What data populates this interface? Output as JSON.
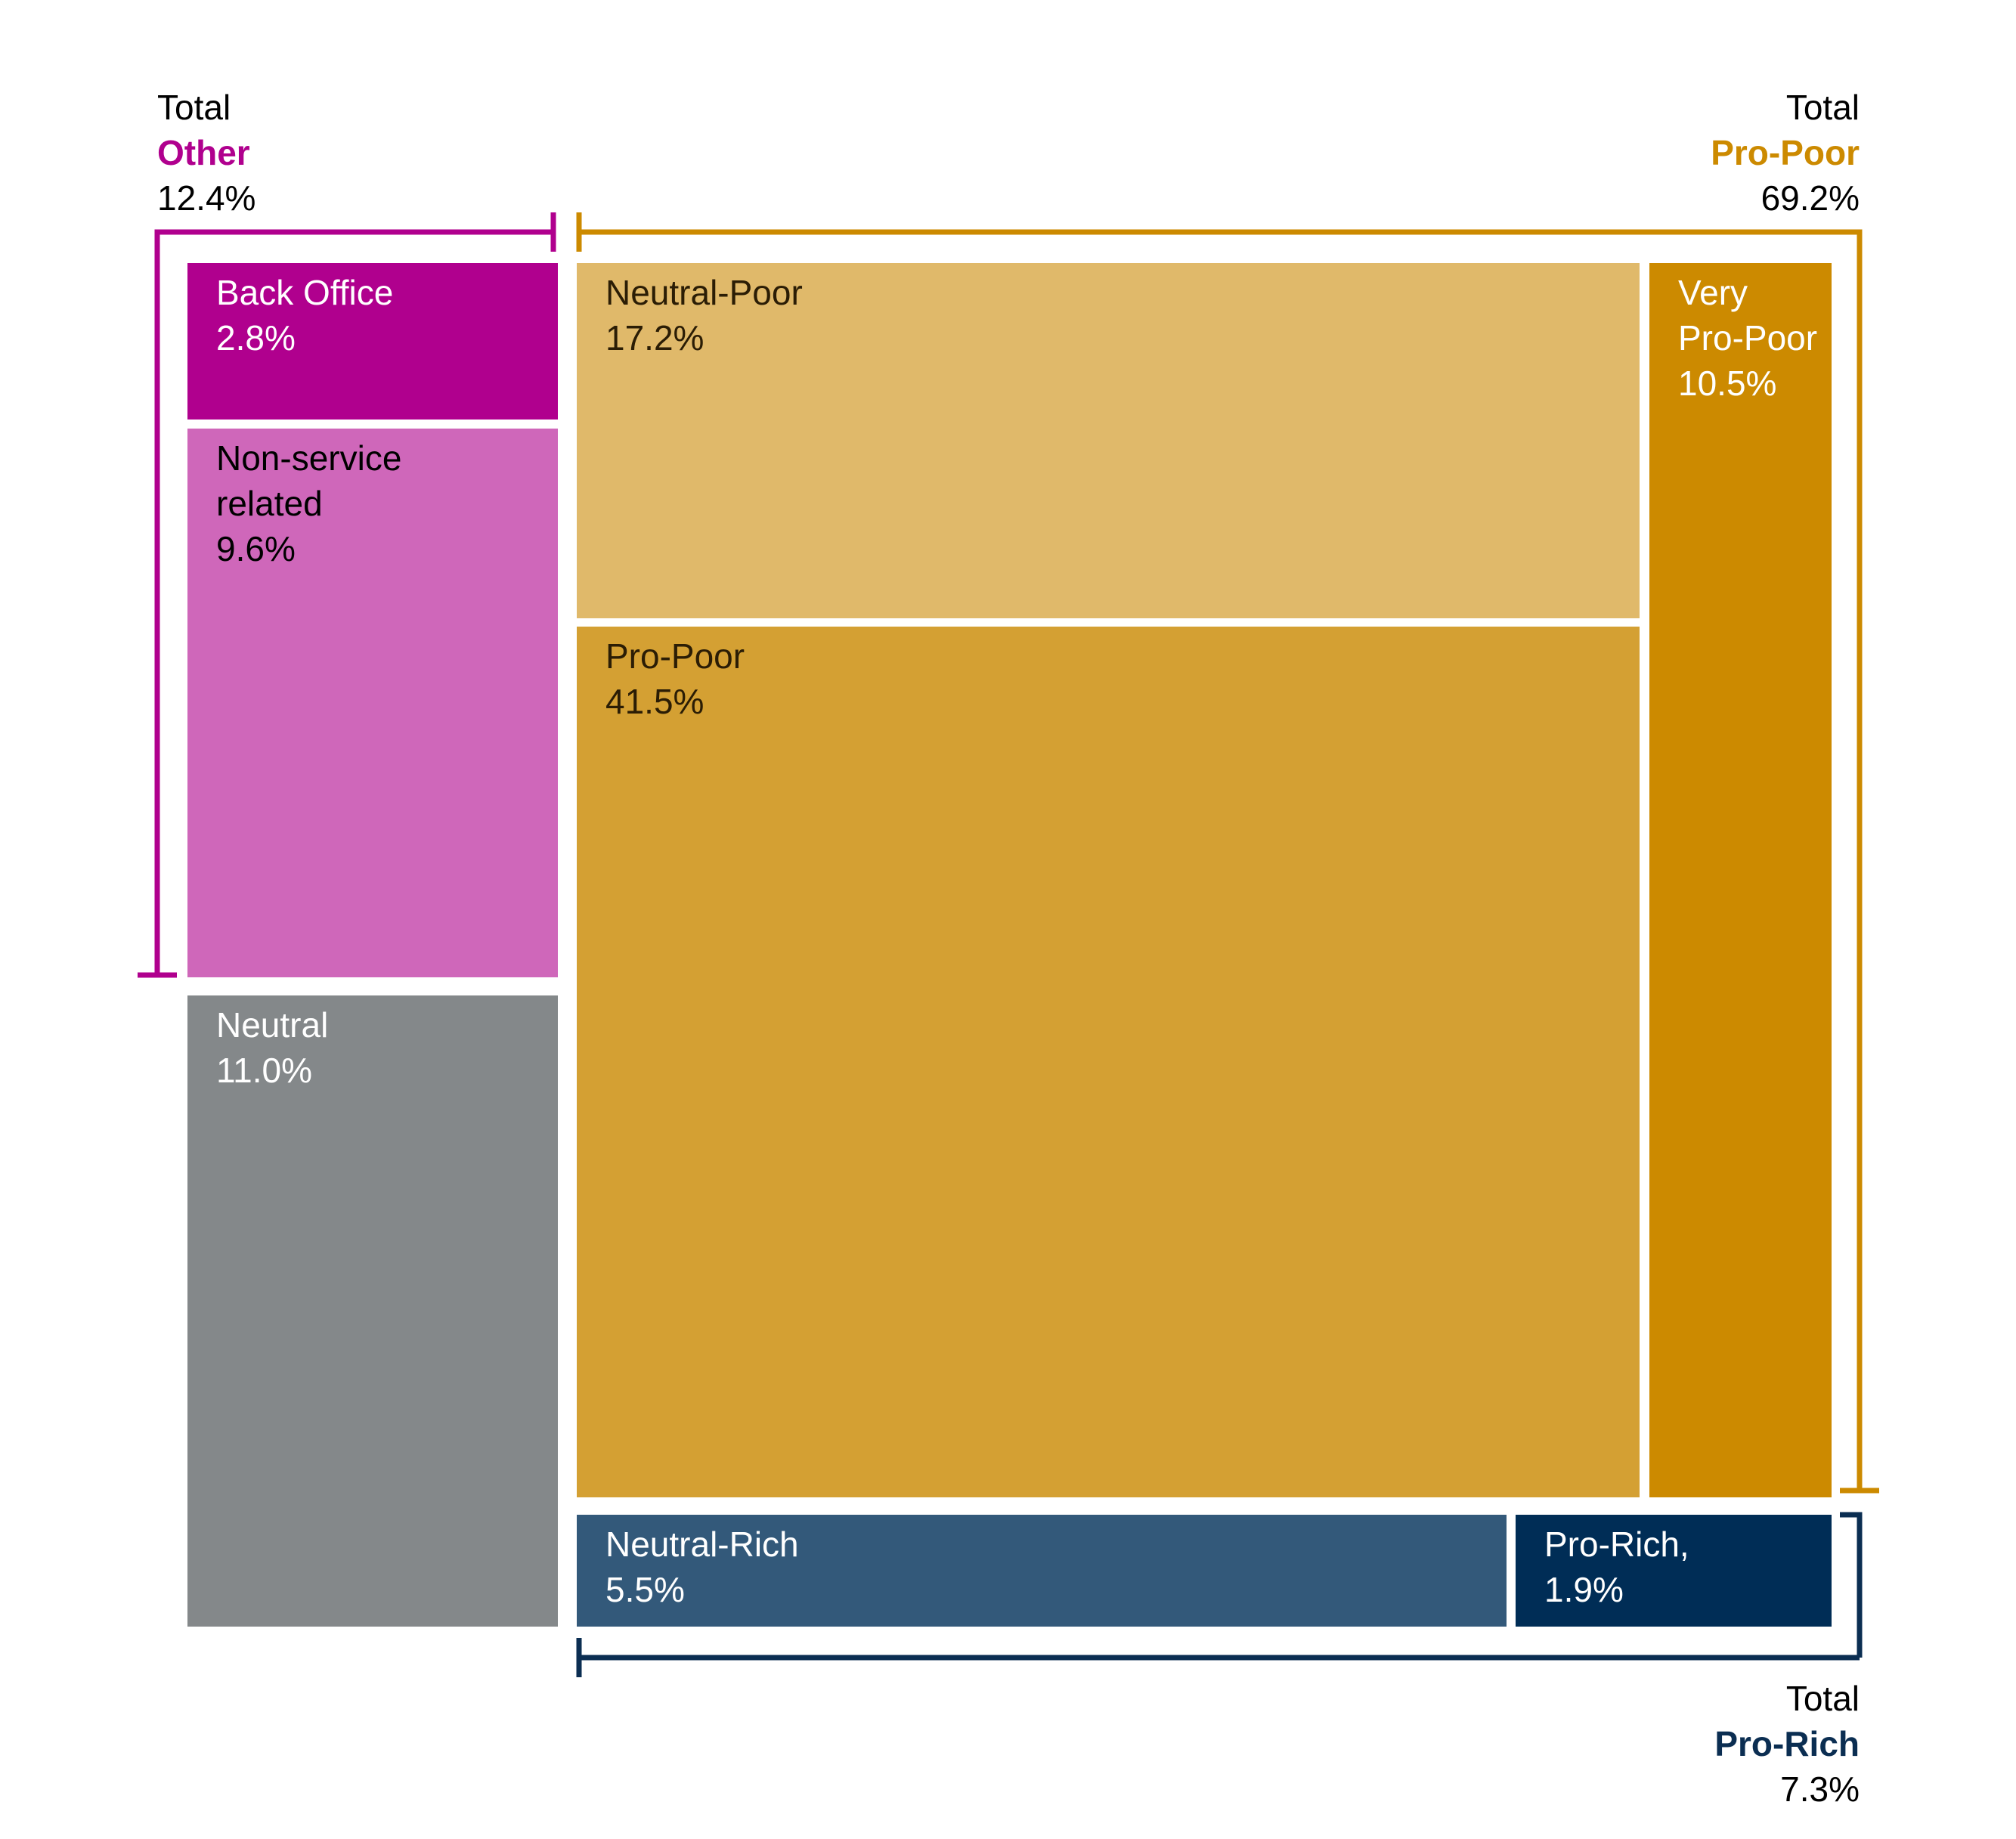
{
  "chart_data": {
    "type": "treemap",
    "unit": "%",
    "colors": {
      "other_accent": "#B0008E",
      "propoor_accent": "#CC8A00",
      "prorich_accent": "#0B2E52",
      "label_dark": "#000000",
      "label_light": "#FFFFFF"
    },
    "cells": [
      {
        "label": "Back Office",
        "value": 2.8,
        "display": "2.8%",
        "color": "#B0008E",
        "text_color": "#FFFFFF"
      },
      {
        "label": "Non-service related",
        "lines": [
          "Non-service",
          "related"
        ],
        "value": 9.6,
        "display": "9.6%",
        "color": "#CF67BA",
        "text_color": "#000000"
      },
      {
        "label": "Neutral",
        "value": 11.0,
        "display": "11.0%",
        "color": "#84888A",
        "text_color": "#FFFFFF"
      },
      {
        "label": "Neutral-Poor",
        "value": 17.2,
        "display": "17.2%",
        "color": "#E0B96A",
        "text_color": "#2B1D05"
      },
      {
        "label": "Pro-Poor",
        "value": 41.5,
        "display": "41.5%",
        "color": "#D4A033",
        "text_color": "#2B1D05"
      },
      {
        "label": "Very Pro-Poor",
        "lines": [
          "Very",
          "Pro-Poor"
        ],
        "value": 10.5,
        "display": "10.5%",
        "color": "#CC8A00",
        "text_color": "#FFFFFF"
      },
      {
        "label": "Neutral-Rich",
        "value": 5.5,
        "display": "5.5%",
        "color": "#33597A",
        "text_color": "#FFFFFF"
      },
      {
        "label": "Pro-Rich,",
        "value": 1.9,
        "display": "1.9%",
        "color": "#002D56",
        "text_color": "#FFFFFF"
      }
    ],
    "totals": [
      {
        "prefix": "Total",
        "group": "Other",
        "value": 12.4,
        "display": "12.4%",
        "color": "#B0008E"
      },
      {
        "prefix": "Total",
        "group": "Pro-Poor",
        "value": 69.2,
        "display": "69.2%",
        "color": "#CC8A00"
      },
      {
        "prefix": "Total",
        "group": "Pro-Rich",
        "value": 7.3,
        "display": "7.3%",
        "color": "#0B2E52"
      }
    ]
  }
}
